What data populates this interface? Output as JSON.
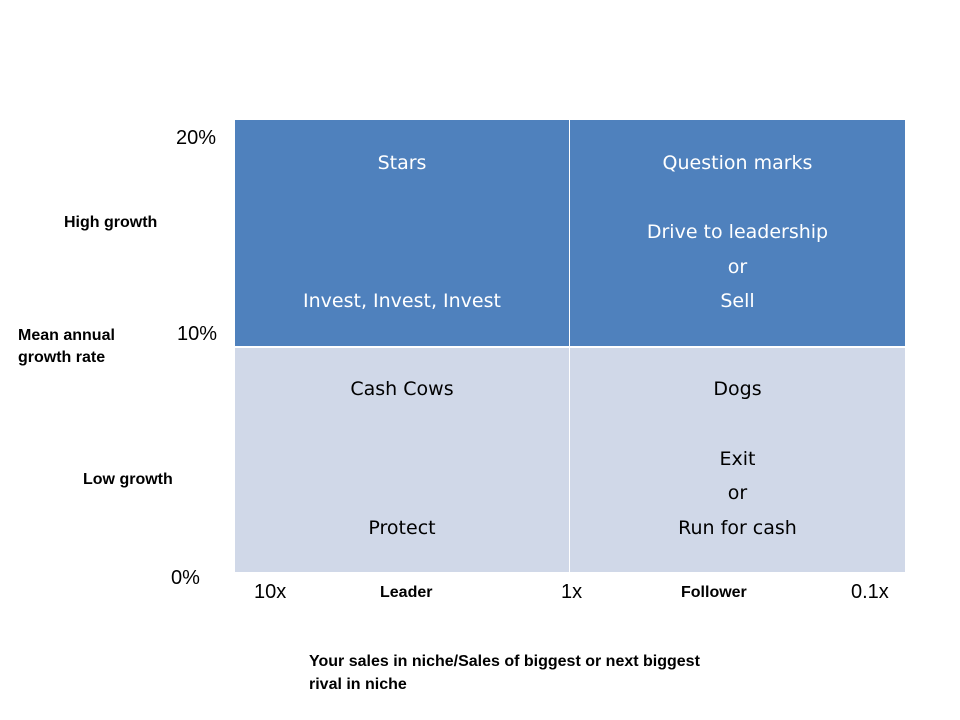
{
  "quadrants": {
    "stars": {
      "title": "Stars",
      "lines": [
        "Invest, Invest, Invest"
      ]
    },
    "question_marks": {
      "title": "Question marks",
      "lines": [
        "Drive to leadership",
        "or",
        "Sell"
      ]
    },
    "cash_cows": {
      "title": "Cash Cows",
      "lines": [
        "Protect"
      ]
    },
    "dogs": {
      "title": "Dogs",
      "lines": [
        "Exit",
        "or",
        "Run for cash"
      ]
    }
  },
  "y_axis": {
    "ticks": [
      "20%",
      "10%",
      "0%"
    ],
    "high_label": "High growth",
    "low_label": "Low growth",
    "title_line1": "Mean annual",
    "title_line2": "growth rate"
  },
  "x_axis": {
    "ticks": [
      "10x",
      "1x",
      "0.1x"
    ],
    "leader_label": "Leader",
    "follower_label": "Follower",
    "caption_line1": "Your sales in niche/Sales of biggest or next biggest",
    "caption_line2": "rival in niche"
  },
  "colors": {
    "top_fill": "#4f81bd",
    "bottom_fill": "#d0d8e8",
    "top_text": "#ffffff",
    "bottom_text": "#000000"
  }
}
